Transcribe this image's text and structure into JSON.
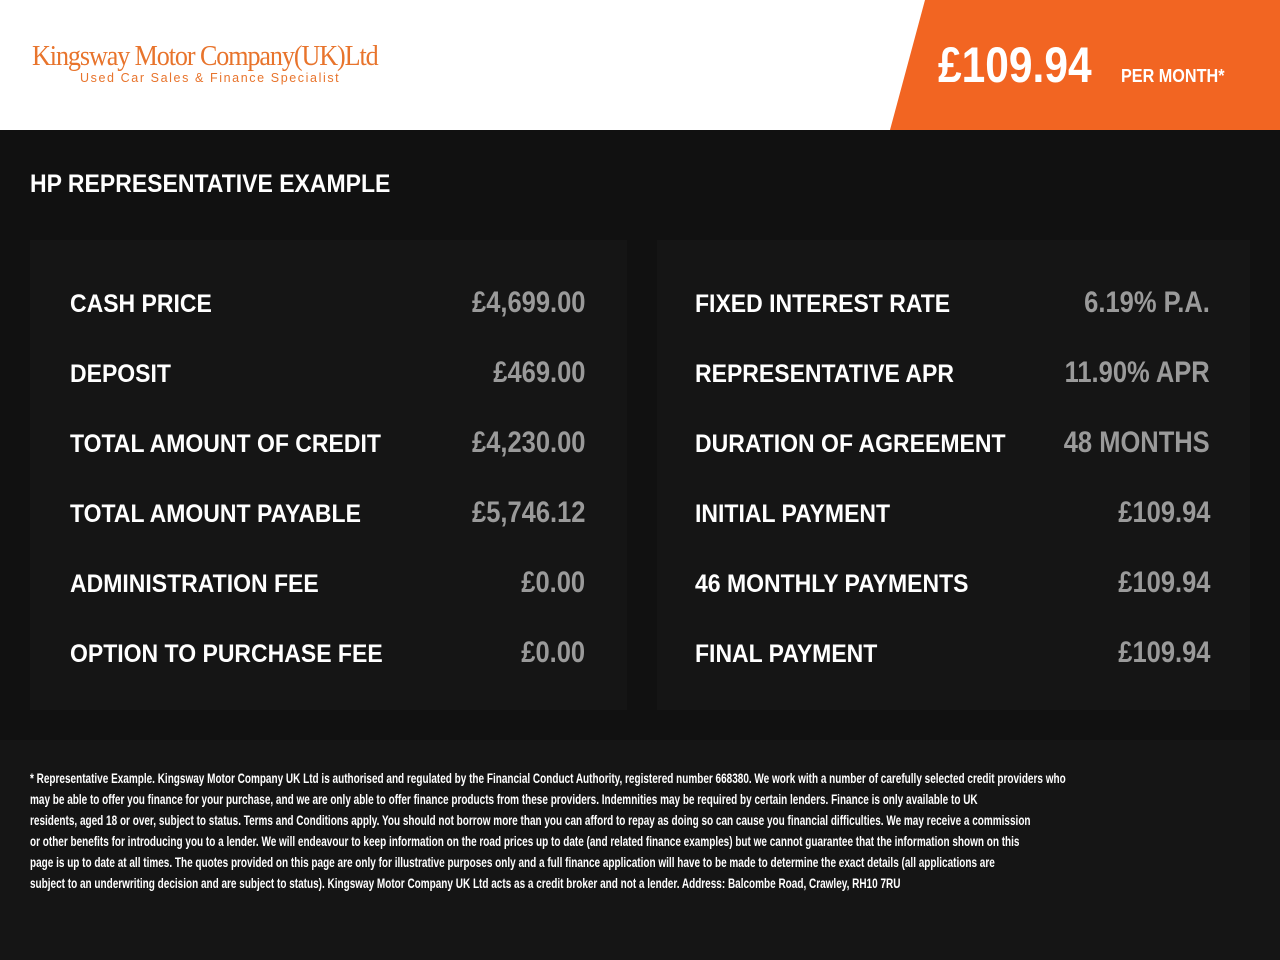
{
  "header": {
    "logo": "Kingsway Motor Company(UK)Ltd",
    "tagline": "Used Car Sales & Finance Specialist",
    "price": "£109.94",
    "price_suffix": "PER MONTH*"
  },
  "section_title": "HP REPRESENTATIVE EXAMPLE",
  "left_table": {
    "rows": [
      [
        "CASH PRICE",
        "£4,699.00"
      ],
      [
        "DEPOSIT",
        "£469.00"
      ],
      [
        "TOTAL AMOUNT OF CREDIT",
        "£4,230.00"
      ],
      [
        "TOTAL AMOUNT PAYABLE",
        "£5,746.12"
      ],
      [
        "ADMINISTRATION FEE",
        "£0.00"
      ],
      [
        "OPTION TO PURCHASE FEE",
        "£0.00"
      ]
    ]
  },
  "right_table": {
    "rows": [
      [
        "FIXED INTEREST RATE",
        "6.19% P.A."
      ],
      [
        "REPRESENTATIVE APR",
        "11.90% APR"
      ],
      [
        "DURATION OF AGREEMENT",
        "48 MONTHS"
      ],
      [
        "INITIAL PAYMENT",
        "£109.94"
      ],
      [
        "46 MONTHLY PAYMENTS",
        "£109.94"
      ],
      [
        "FINAL PAYMENT",
        "£109.94"
      ]
    ]
  },
  "disclaimer": {
    "lines": [
      "* Representative Example. Kingsway Motor Company UK Ltd is authorised and regulated by the Financial Conduct Authority, registered number 668380. We work with a number of carefully selected credit providers who",
      "may be able to offer you finance for your purchase, and we are only able to offer finance products from these providers. Indemnities may be required by certain lenders. Finance is only available to UK",
      "residents, aged 18 or over, subject to status. Terms and Conditions apply. You should not borrow more than you can afford to repay as doing so can cause you financial difficulties. We may receive a commission",
      "or other benefits for introducing you to a lender. We will endeavour to keep information on the road prices up to date (and related finance examples) but we cannot guarantee that the information shown on this",
      "page is up to date at all times. The quotes provided on this page are only for illustrative purposes only and a full finance application will have to be made to determine the exact details (all applications are",
      "subject to an underwriting decision and are subject to status). Kingsway Motor Company UK Ltd acts as a credit broker and not a lender. Address: Balcombe Road, Crawley, RH10 7RU"
    ]
  }
}
